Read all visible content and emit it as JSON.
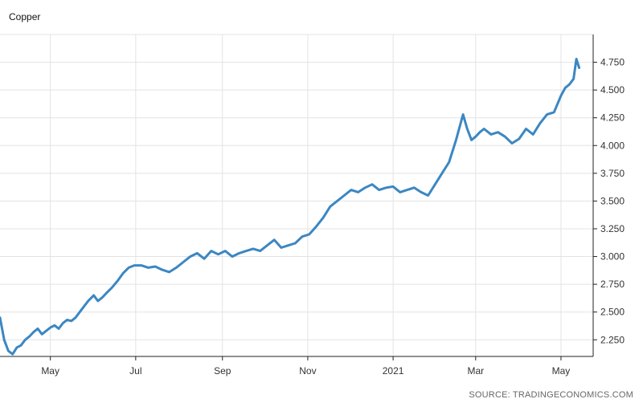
{
  "title": "Copper",
  "source": "SOURCE: TRADINGECONOMICS.COM",
  "chart_data": {
    "type": "line",
    "title": "Copper",
    "xlabel": "",
    "ylabel": "",
    "ylim": [
      2.1,
      5.0
    ],
    "xlim": [
      "2020-03-26",
      "2021-05-24"
    ],
    "x_ticks": [
      {
        "label": "May",
        "date": "2020-05-01"
      },
      {
        "label": "Jul",
        "date": "2020-07-01"
      },
      {
        "label": "Sep",
        "date": "2020-09-01"
      },
      {
        "label": "Nov",
        "date": "2020-11-01"
      },
      {
        "label": "2021",
        "date": "2021-01-01"
      },
      {
        "label": "Mar",
        "date": "2021-03-01"
      },
      {
        "label": "May",
        "date": "2021-05-01"
      }
    ],
    "y_ticks": [
      {
        "label": "2.250",
        "value": 2.25
      },
      {
        "label": "2.500",
        "value": 2.5
      },
      {
        "label": "2.750",
        "value": 2.75
      },
      {
        "label": "3.000",
        "value": 3.0
      },
      {
        "label": "3.250",
        "value": 3.25
      },
      {
        "label": "3.500",
        "value": 3.5
      },
      {
        "label": "3.750",
        "value": 3.75
      },
      {
        "label": "4.000",
        "value": 4.0
      },
      {
        "label": "4.250",
        "value": 4.25
      },
      {
        "label": "4.500",
        "value": 4.5
      },
      {
        "label": "4.750",
        "value": 4.75
      }
    ],
    "grid": true,
    "line_color": "#3c87c2",
    "series": [
      {
        "x": [
          "2020-03-26",
          "2020-03-29",
          "2020-04-01",
          "2020-04-04",
          "2020-04-07",
          "2020-04-10",
          "2020-04-13",
          "2020-04-16",
          "2020-04-19",
          "2020-04-22",
          "2020-04-25",
          "2020-04-28",
          "2020-05-01",
          "2020-05-04",
          "2020-05-07",
          "2020-05-10",
          "2020-05-13",
          "2020-05-16",
          "2020-05-19",
          "2020-05-22",
          "2020-05-25",
          "2020-05-28",
          "2020-06-01",
          "2020-06-04",
          "2020-06-07",
          "2020-06-10",
          "2020-06-14",
          "2020-06-18",
          "2020-06-22",
          "2020-06-26",
          "2020-06-30",
          "2020-07-05",
          "2020-07-10",
          "2020-07-15",
          "2020-07-20",
          "2020-07-25",
          "2020-07-30",
          "2020-08-04",
          "2020-08-09",
          "2020-08-14",
          "2020-08-19",
          "2020-08-24",
          "2020-08-29",
          "2020-09-03",
          "2020-09-08",
          "2020-09-13",
          "2020-09-18",
          "2020-09-23",
          "2020-09-28",
          "2020-10-03",
          "2020-10-08",
          "2020-10-13",
          "2020-10-18",
          "2020-10-23",
          "2020-10-28",
          "2020-11-02",
          "2020-11-07",
          "2020-11-12",
          "2020-11-17",
          "2020-11-22",
          "2020-11-27",
          "2020-12-02",
          "2020-12-07",
          "2020-12-12",
          "2020-12-17",
          "2020-12-22",
          "2020-12-27",
          "2021-01-01",
          "2021-01-06",
          "2021-01-11",
          "2021-01-16",
          "2021-01-21",
          "2021-01-26",
          "2021-01-31",
          "2021-02-05",
          "2021-02-10",
          "2021-02-15",
          "2021-02-20",
          "2021-02-23",
          "2021-02-26",
          "2021-03-01",
          "2021-03-04",
          "2021-03-07",
          "2021-03-12",
          "2021-03-17",
          "2021-03-22",
          "2021-03-27",
          "2021-04-01",
          "2021-04-06",
          "2021-04-11",
          "2021-04-16",
          "2021-04-21",
          "2021-04-26",
          "2021-05-01",
          "2021-05-04",
          "2021-05-07",
          "2021-05-10",
          "2021-05-12",
          "2021-05-14"
        ],
        "values": [
          2.45,
          2.25,
          2.15,
          2.12,
          2.18,
          2.2,
          2.25,
          2.28,
          2.32,
          2.35,
          2.3,
          2.33,
          2.36,
          2.38,
          2.35,
          2.4,
          2.43,
          2.42,
          2.45,
          2.5,
          2.55,
          2.6,
          2.65,
          2.6,
          2.63,
          2.67,
          2.72,
          2.78,
          2.85,
          2.9,
          2.92,
          2.92,
          2.9,
          2.91,
          2.88,
          2.86,
          2.9,
          2.95,
          3.0,
          3.03,
          2.98,
          3.05,
          3.02,
          3.05,
          3.0,
          3.03,
          3.05,
          3.07,
          3.05,
          3.1,
          3.15,
          3.08,
          3.1,
          3.12,
          3.18,
          3.2,
          3.27,
          3.35,
          3.45,
          3.5,
          3.55,
          3.6,
          3.58,
          3.62,
          3.65,
          3.6,
          3.62,
          3.63,
          3.58,
          3.6,
          3.62,
          3.58,
          3.55,
          3.65,
          3.75,
          3.85,
          4.05,
          4.28,
          4.15,
          4.05,
          4.08,
          4.12,
          4.15,
          4.1,
          4.12,
          4.08,
          4.02,
          4.06,
          4.15,
          4.1,
          4.2,
          4.28,
          4.3,
          4.45,
          4.52,
          4.55,
          4.6,
          4.78,
          4.7
        ]
      }
    ]
  }
}
